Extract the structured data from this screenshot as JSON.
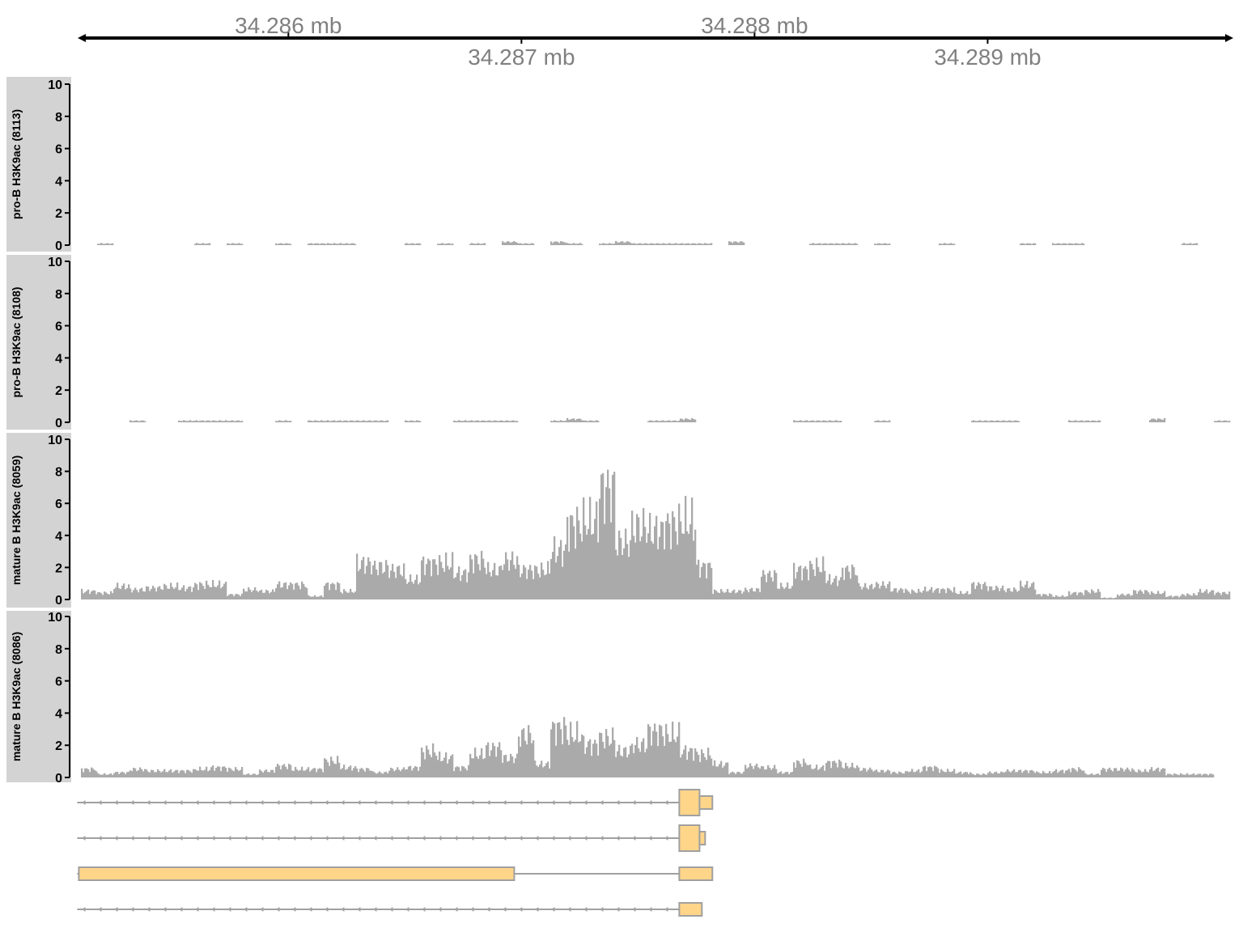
{
  "chart_data": {
    "type": "genome-tracks",
    "genome_axis": {
      "range_mb": [
        34.28511,
        34.29004
      ],
      "ticks": [
        {
          "value": 34.286,
          "label": "34.286 mb",
          "side": "above"
        },
        {
          "value": 34.287,
          "label": "34.287 mb",
          "side": "below"
        },
        {
          "value": 34.288,
          "label": "34.288 mb",
          "side": "above"
        },
        {
          "value": 34.289,
          "label": "34.289 mb",
          "side": "below"
        }
      ]
    },
    "coverage_bin_kb": 0.0694,
    "ylim": [
      0,
      10
    ],
    "yticks": [
      "0",
      "2",
      "4",
      "6",
      "8",
      "10"
    ],
    "bar_color": "#aaaaaa",
    "title_panel_color": "#d3d3d3",
    "tracks": [
      {
        "name": "pro-B H3K9ac (8113)",
        "values": [
          0,
          0.1,
          0,
          0,
          0,
          0,
          0,
          0.1,
          0,
          0.1,
          0,
          0,
          0.1,
          0,
          0.1,
          0.1,
          0.1,
          0,
          0,
          0,
          0.1,
          0,
          0.1,
          0,
          0.1,
          0,
          0.2,
          0.1,
          0,
          0.2,
          0.1,
          0,
          0.1,
          0.2,
          0.1,
          0.1,
          0.1,
          0.1,
          0.1,
          0,
          0.2,
          0,
          0,
          0,
          0,
          0.1,
          0.1,
          0.1,
          0,
          0.1,
          0,
          0,
          0,
          0.1,
          0,
          0,
          0,
          0,
          0.1,
          0,
          0.1,
          0.1,
          0,
          0,
          0,
          0,
          0,
          0,
          0.1,
          0,
          0
        ]
      },
      {
        "name": "pro-B H3K9ac (8108)",
        "values": [
          0,
          0,
          0,
          0.1,
          0,
          0,
          0.1,
          0.1,
          0.1,
          0.1,
          0,
          0,
          0.1,
          0,
          0.1,
          0.1,
          0.1,
          0.1,
          0.1,
          0,
          0.1,
          0,
          0,
          0.1,
          0.1,
          0.1,
          0.1,
          0,
          0,
          0.1,
          0.2,
          0.1,
          0,
          0,
          0,
          0.1,
          0.1,
          0.2,
          0,
          0,
          0,
          0,
          0,
          0,
          0.1,
          0.1,
          0.1,
          0,
          0,
          0.1,
          0,
          0,
          0,
          0,
          0,
          0.1,
          0.1,
          0.1,
          0,
          0,
          0,
          0.1,
          0.1,
          0,
          0,
          0,
          0.2,
          0,
          0,
          0,
          0.1
        ]
      },
      {
        "name": "mature B H3K9ac (8059)",
        "values": [
          0.5,
          0.4,
          0.8,
          0.6,
          0.7,
          0.8,
          0.7,
          0.9,
          0.9,
          0.3,
          0.6,
          0.5,
          0.9,
          0.9,
          0.2,
          0.9,
          0.5,
          2.2,
          2.0,
          1.8,
          1.2,
          2.2,
          2.2,
          1.6,
          2.4,
          1.8,
          2.4,
          1.8,
          1.8,
          3.0,
          4.6,
          4.8,
          6.8,
          3.5,
          4.5,
          4.2,
          4.6,
          4.8,
          2.0,
          0.5,
          0.5,
          0.6,
          1.5,
          0.8,
          1.8,
          2.0,
          1.2,
          1.8,
          0.8,
          0.9,
          0.6,
          0.5,
          0.6,
          0.6,
          0.4,
          0.9,
          0.7,
          0.6,
          0.9,
          0.3,
          0.2,
          0.4,
          0.5,
          0.1,
          0.3,
          0.5,
          0.4,
          0.2,
          0.3,
          0.5,
          0.4
        ]
      },
      {
        "name": "mature B H3K9ac (8086)",
        "values": [
          0.5,
          0.2,
          0.3,
          0.5,
          0.4,
          0.4,
          0.4,
          0.5,
          0.6,
          0.5,
          0.2,
          0.4,
          0.7,
          0.5,
          0.5,
          1.0,
          0.6,
          0.5,
          0.3,
          0.5,
          0.6,
          1.6,
          1.2,
          0.6,
          1.4,
          1.8,
          1.2,
          2.6,
          0.8,
          3.0,
          2.6,
          2.0,
          2.4,
          1.6,
          2.0,
          2.8,
          2.6,
          1.6,
          1.4,
          0.8,
          0.3,
          0.7,
          0.6,
          0.3,
          0.9,
          0.6,
          0.9,
          0.7,
          0.5,
          0.4,
          0.3,
          0.4,
          0.6,
          0.4,
          0.3,
          0.2,
          0.3,
          0.4,
          0.4,
          0.3,
          0.4,
          0.5,
          0.2,
          0.5,
          0.5,
          0.4,
          0.5,
          0.2,
          0.2,
          0.2,
          0
        ]
      }
    ],
    "gene_model": {
      "fill": "#ffd58a",
      "border": "#a0a0a0",
      "strand": "-",
      "transcripts": [
        {
          "start": 34.285101,
          "end": 34.287819,
          "exons": [
            {
              "start": 34.287677,
              "end": 34.287764,
              "type": "cds"
            },
            {
              "start": 34.287764,
              "end": 34.287819,
              "type": "utr"
            }
          ]
        },
        {
          "start": 34.285101,
          "end": 34.287788,
          "exons": [
            {
              "start": 34.287677,
              "end": 34.287764,
              "type": "cds"
            },
            {
              "start": 34.287764,
              "end": 34.287788,
              "type": "utr"
            }
          ]
        },
        {
          "start": 34.285101,
          "end": 34.287819,
          "exons": [
            {
              "start": 34.285101,
              "end": 34.286969,
              "type": "utr"
            },
            {
              "start": 34.287677,
              "end": 34.287819,
              "type": "utr"
            }
          ]
        },
        {
          "start": 34.285101,
          "end": 34.287774,
          "exons": [
            {
              "start": 34.287677,
              "end": 34.287774,
              "type": "utr"
            }
          ]
        }
      ]
    }
  }
}
